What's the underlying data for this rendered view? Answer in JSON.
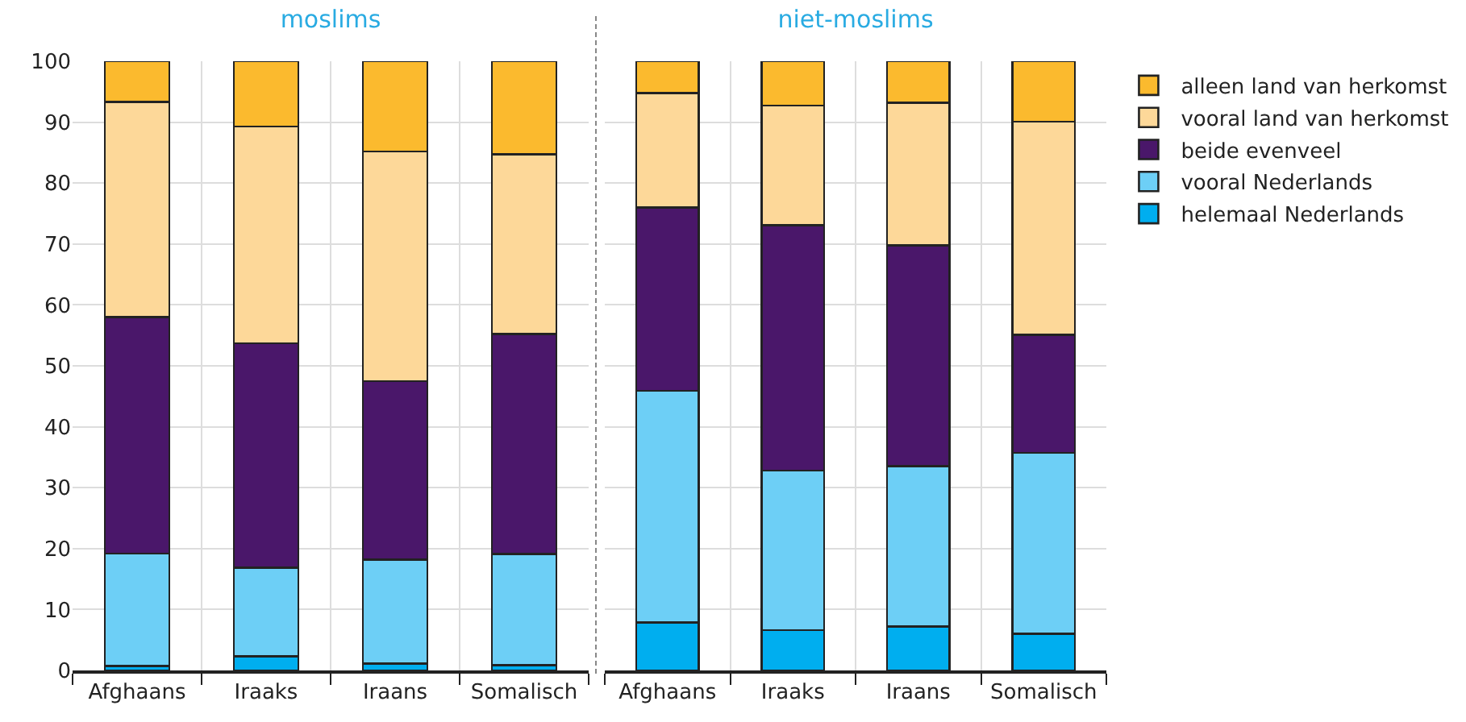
{
  "chart_data": [
    {
      "type": "bar",
      "title": "moslims",
      "categories": [
        "Afghaans",
        "Iraaks",
        "Iraans",
        "Somalisch"
      ],
      "stacked": true,
      "ylim": [
        0,
        100
      ],
      "yticks": [
        0,
        10,
        20,
        30,
        40,
        50,
        60,
        70,
        80,
        90,
        100
      ],
      "grid": true,
      "series": [
        {
          "color": "#00aeef",
          "values": [
            0.7,
            2.3,
            1.1,
            0.9
          ]
        },
        {
          "color": "#6dcff6",
          "values": [
            18.5,
            14.6,
            17.1,
            18.2
          ]
        },
        {
          "color": "#4a176a",
          "values": [
            38.8,
            36.8,
            29.3,
            36.1
          ]
        },
        {
          "color": "#fdd899",
          "values": [
            35.3,
            35.6,
            37.7,
            29.5
          ]
        },
        {
          "color": "#fbba2e",
          "values": [
            6.7,
            10.7,
            14.8,
            15.3
          ]
        }
      ]
    },
    {
      "type": "bar",
      "title": "niet-moslims",
      "categories": [
        "Afghaans",
        "Iraaks",
        "Iraans",
        "Somalisch"
      ],
      "stacked": true,
      "ylim": [
        0,
        100
      ],
      "yticks": [
        0,
        10,
        20,
        30,
        40,
        50,
        60,
        70,
        80,
        90,
        100
      ],
      "grid": true,
      "tick_labels": "x",
      "legend": "top right",
      "series": [
        {
          "name": "helemaal Nederlands",
          "color": "#00aeef",
          "values": [
            7.9,
            6.6,
            7.2,
            6.0
          ]
        },
        {
          "name": "vooral Nederlands",
          "color": "#6dcff6",
          "values": [
            38.0,
            26.2,
            26.3,
            29.7
          ]
        },
        {
          "name": "beide evenveel",
          "color": "#4a176a",
          "values": [
            30.1,
            40.3,
            36.3,
            19.4
          ]
        },
        {
          "name": "vooral land van herkomst",
          "color": "#fdd899",
          "values": [
            18.8,
            19.6,
            23.4,
            35.0
          ]
        },
        {
          "name": "alleen land van herkomst",
          "color": "#fbba2e",
          "values": [
            5.2,
            7.3,
            6.8,
            9.9
          ]
        }
      ]
    }
  ]
}
